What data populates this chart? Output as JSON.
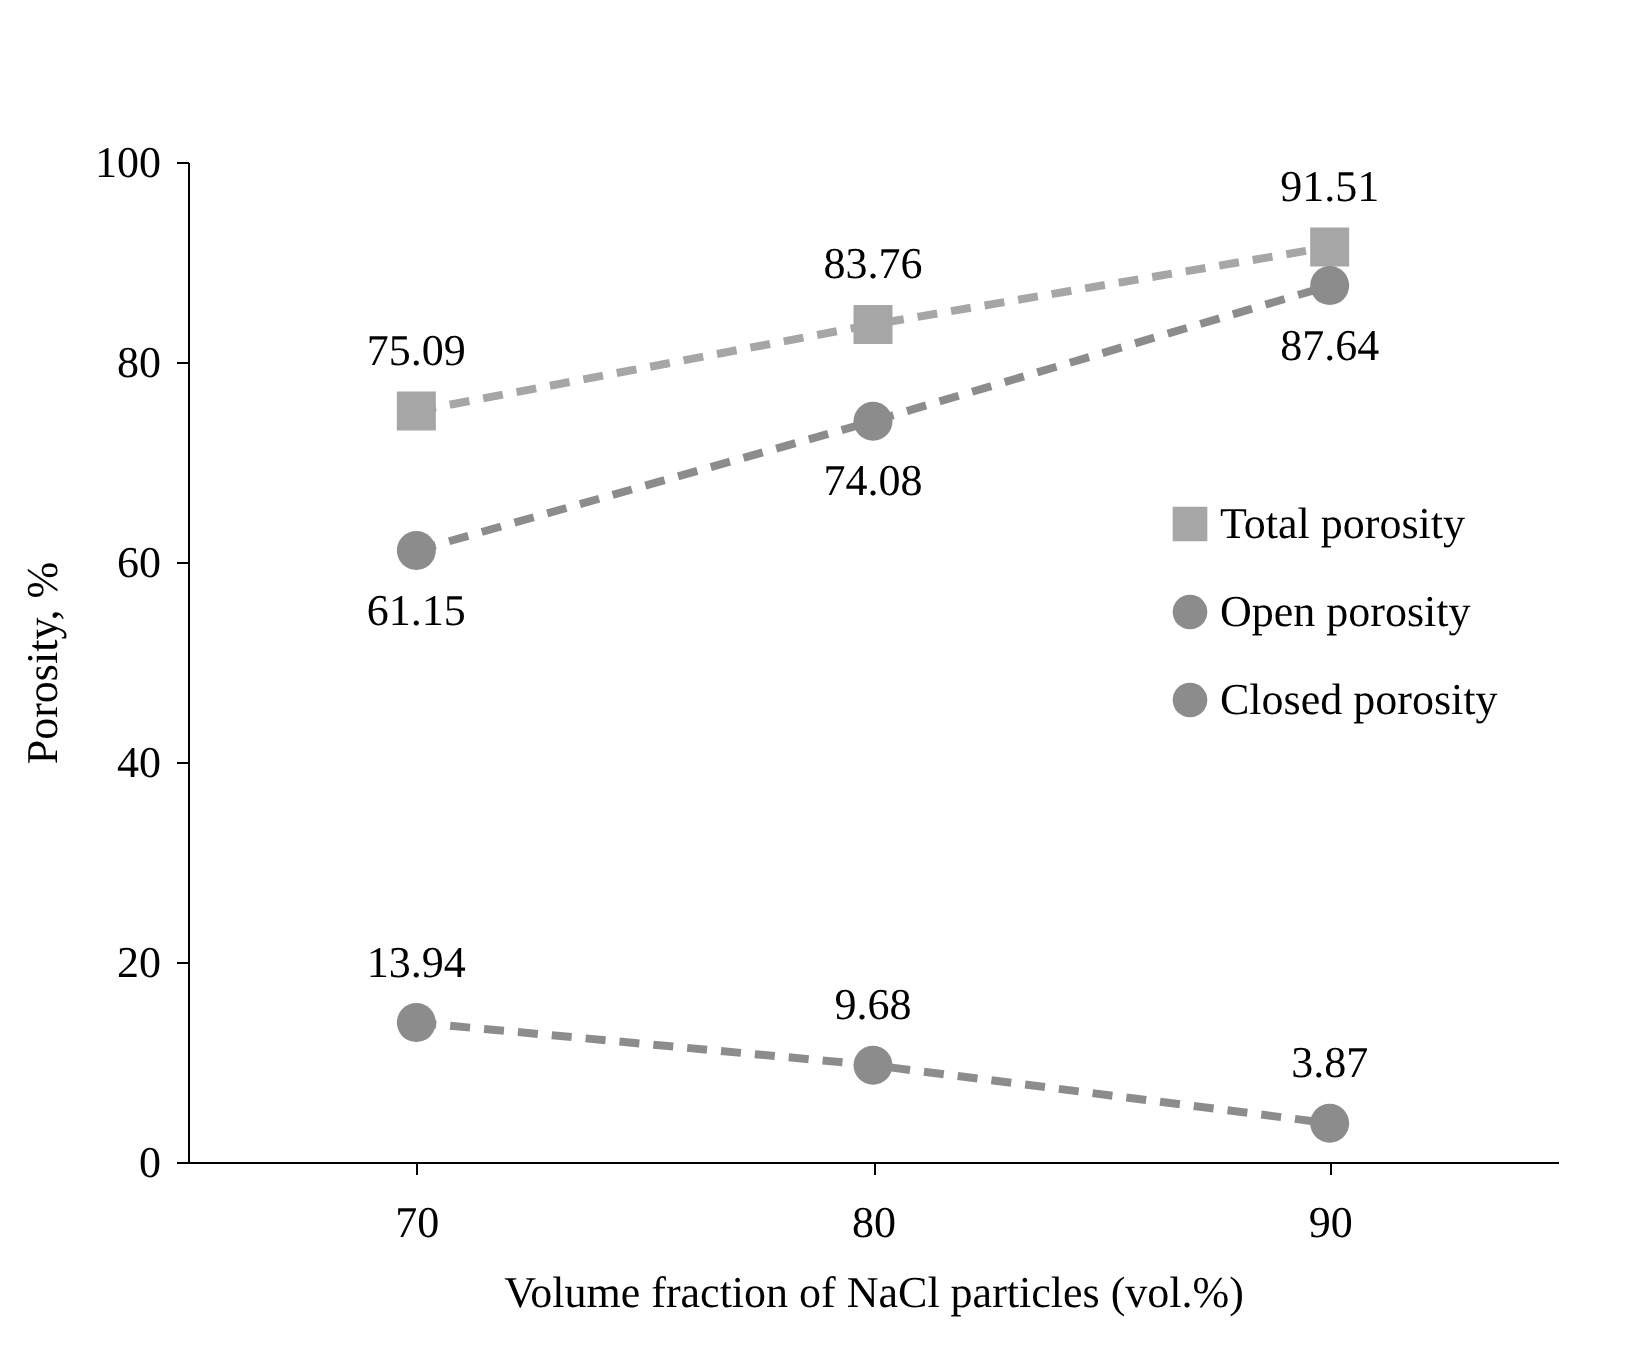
{
  "chart_data": {
    "type": "line",
    "xlabel": "Volume fraction of NaCl particles (vol.%)",
    "ylabel": "Porosity, %",
    "categories": [
      "70",
      "80",
      "90"
    ],
    "series": [
      {
        "name": "Total porosity",
        "color": "#a6a6a6",
        "marker": "square",
        "values": [
          75.09,
          83.76,
          91.51
        ]
      },
      {
        "name": "Open porosity",
        "color": "#8c8c8c",
        "marker": "circle",
        "values": [
          61.15,
          74.08,
          87.64
        ]
      },
      {
        "name": "Closed porosity",
        "color": "#8c8c8c",
        "marker": "circle",
        "values": [
          13.94,
          9.68,
          3.87
        ]
      }
    ],
    "ylim": [
      0,
      100
    ],
    "yticks": [
      0,
      20,
      40,
      60,
      80,
      100
    ],
    "grid": false,
    "legend": "right",
    "line_style": "dashed",
    "data_labels": true
  }
}
